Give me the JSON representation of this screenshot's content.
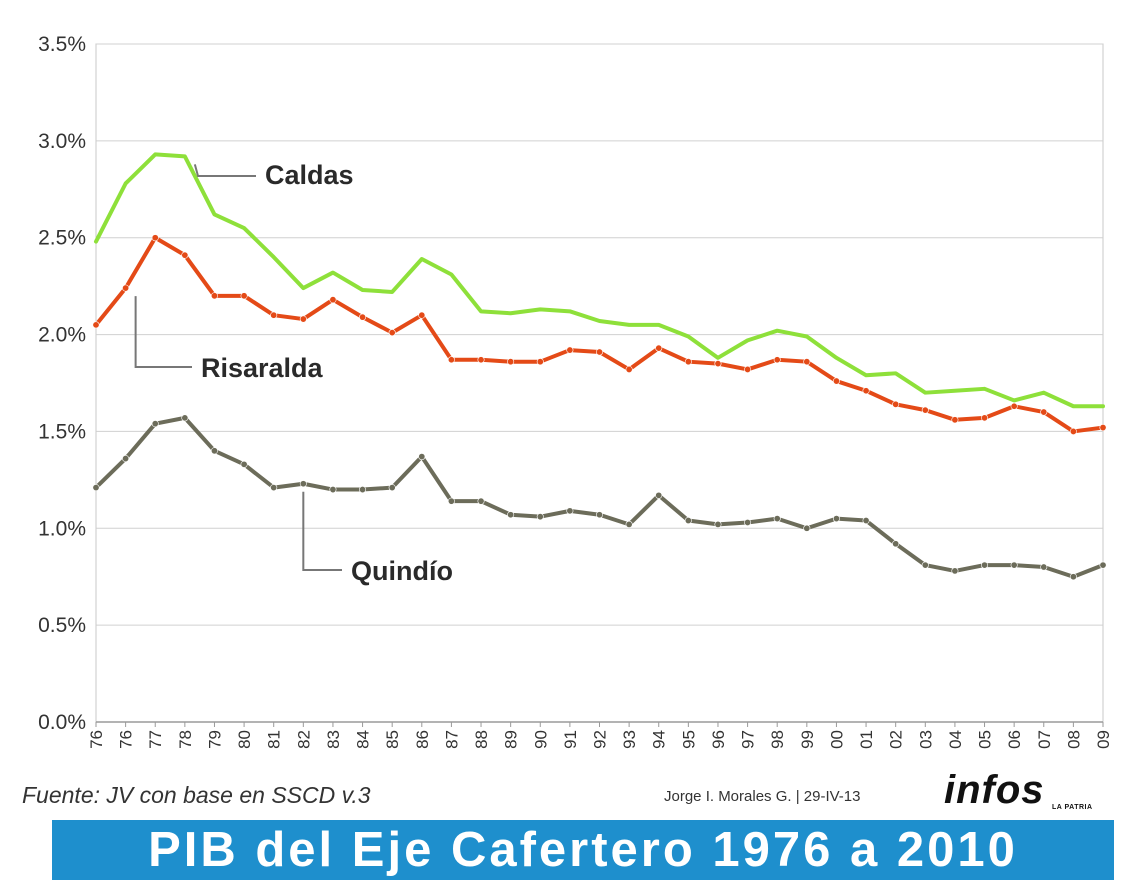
{
  "chart_data": {
    "type": "line",
    "title": "PIB del Eje Cafertero 1976 a 2010",
    "xlabel": "",
    "ylabel": "",
    "ylim": [
      0,
      3.5
    ],
    "y_ticks": [
      "0.0%",
      "0.5%",
      "1.0%",
      "1.5%",
      "2.0%",
      "2.5%",
      "3.0%",
      "3.5%"
    ],
    "grid": true,
    "categories": [
      "76",
      "76",
      "77",
      "78",
      "79",
      "80",
      "81",
      "82",
      "83",
      "84",
      "85",
      "86",
      "87",
      "88",
      "89",
      "90",
      "91",
      "92",
      "93",
      "94",
      "95",
      "96",
      "97",
      "98",
      "99",
      "00",
      "01",
      "02",
      "03",
      "04",
      "05",
      "06",
      "07",
      "08",
      "09"
    ],
    "series": [
      {
        "name": "Caldas",
        "color": "#8ee03a",
        "values": [
          2.48,
          2.78,
          2.93,
          2.92,
          2.62,
          2.55,
          2.4,
          2.24,
          2.32,
          2.23,
          2.22,
          2.39,
          2.31,
          2.12,
          2.11,
          2.13,
          2.12,
          2.07,
          2.05,
          2.05,
          1.99,
          1.88,
          1.97,
          2.02,
          1.99,
          1.88,
          1.79,
          1.8,
          1.7,
          1.71,
          1.72,
          1.66,
          1.7,
          1.63,
          1.63
        ]
      },
      {
        "name": "Risaralda",
        "color": "#e44a17",
        "values": [
          2.05,
          2.24,
          2.5,
          2.41,
          2.2,
          2.2,
          2.1,
          2.08,
          2.18,
          2.09,
          2.01,
          2.1,
          1.87,
          1.87,
          1.86,
          1.86,
          1.92,
          1.91,
          1.82,
          1.93,
          1.86,
          1.85,
          1.82,
          1.87,
          1.86,
          1.76,
          1.71,
          1.64,
          1.61,
          1.56,
          1.57,
          1.63,
          1.6,
          1.5,
          1.52
        ]
      },
      {
        "name": "Quindío",
        "color": "#6c6c5a",
        "values": [
          1.21,
          1.36,
          1.54,
          1.57,
          1.4,
          1.33,
          1.21,
          1.23,
          1.2,
          1.2,
          1.21,
          1.37,
          1.14,
          1.14,
          1.07,
          1.06,
          1.09,
          1.07,
          1.02,
          1.17,
          1.04,
          1.02,
          1.03,
          1.05,
          1.0,
          1.05,
          1.04,
          0.92,
          0.81,
          0.78,
          0.81,
          0.81,
          0.8,
          0.75,
          0.81
        ]
      }
    ]
  },
  "footer": {
    "source": "Fuente: JV con base en SSCD v.3",
    "credit": "Jorge I. Morales G. | 29-IV-13",
    "logo": "infos",
    "logo_sub": "LA PATRIA"
  },
  "banner": {
    "title": "PIB del Eje Cafertero 1976 a 2010",
    "color": "#1e8fcd"
  }
}
